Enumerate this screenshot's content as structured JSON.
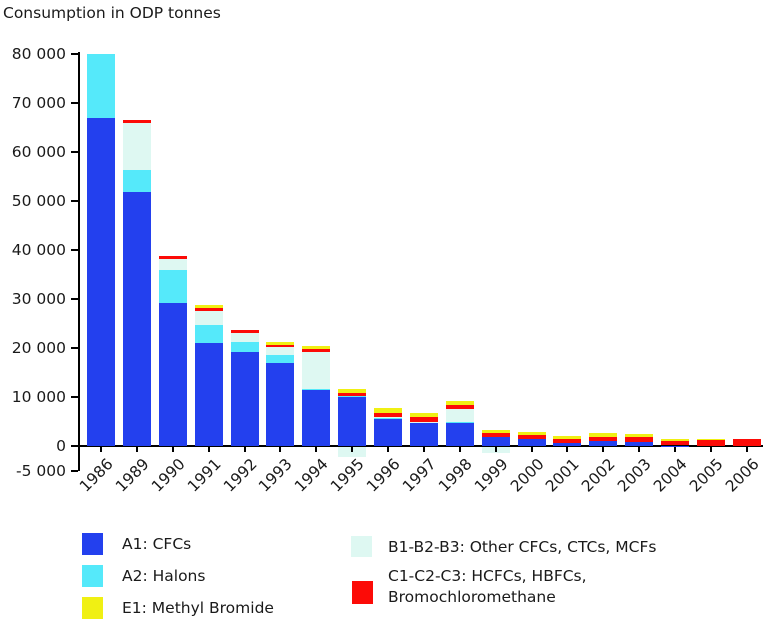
{
  "title": "Consumption in ODP tonnes",
  "colors": {
    "blue": "#2340EE",
    "cyan": "#55E9FA",
    "pale": "#DEF8F2",
    "yellow": "#F0F013",
    "red": "#FC0B07",
    "axis": "#000000"
  },
  "chart_data": {
    "type": "bar",
    "stacked": true,
    "title": "Consumption in ODP tonnes",
    "xlabel": "",
    "ylabel": "Consumption in ODP tonnes",
    "ylim": [
      -5000,
      80000
    ],
    "grid": false,
    "legend_position": "bottom",
    "categories": [
      "1986",
      "1989",
      "1990",
      "1991",
      "1992",
      "1993",
      "1994",
      "1995",
      "1996",
      "1997",
      "1998",
      "1999",
      "2000",
      "2001",
      "2002",
      "2003",
      "2004",
      "2005",
      "2006"
    ],
    "series": [
      {
        "id": "a1",
        "name": "A1: CFCs",
        "color_key": "blue",
        "values": [
          66900,
          51900,
          29100,
          21000,
          19200,
          17000,
          11400,
          9900,
          5450,
          4750,
          4850,
          1780,
          1370,
          670,
          1080,
          880,
          100,
          0,
          0
        ]
      },
      {
        "id": "a2",
        "name": "A2: Halons",
        "color_key": "cyan",
        "values": [
          13100,
          4400,
          6800,
          3700,
          2000,
          1600,
          200,
          300,
          250,
          100,
          150,
          0,
          0,
          0,
          0,
          0,
          0,
          0,
          0
        ]
      },
      {
        "id": "b",
        "name": "B1-B2-B3: Other CFCs, CTCs, MCFs",
        "color_key": "pale",
        "values": [
          0,
          9600,
          2300,
          2900,
          1850,
          1600,
          7500,
          -2000,
          300,
          100,
          2500,
          -1300,
          0,
          0,
          0,
          0,
          0,
          0,
          0
        ]
      },
      {
        "id": "c",
        "name": "C1-C2-C3: HCFCs, HBFCs, Bromochloromethane",
        "color_key": "red",
        "values": [
          0,
          550,
          550,
          550,
          550,
          470,
          670,
          670,
          820,
          890,
          820,
          820,
          880,
          680,
          820,
          890,
          880,
          1200,
          1500
        ]
      },
      {
        "id": "e1",
        "name": "E1: Methyl Bromide",
        "color_key": "yellow",
        "values": [
          0,
          0,
          0,
          670,
          0,
          470,
          670,
          670,
          900,
          820,
          820,
          690,
          680,
          680,
          690,
          670,
          490,
          150,
          0
        ]
      }
    ],
    "yticks": {
      "values": [
        80000,
        70000,
        60000,
        50000,
        40000,
        30000,
        20000,
        10000,
        0,
        -5000
      ],
      "labels": [
        "80 000",
        "70 000",
        "60 000",
        "50 000",
        "40 000",
        "30 000",
        "20 000",
        "10 000",
        "0",
        "-5 000"
      ]
    }
  },
  "legend": {
    "left_items": [
      {
        "id": "a1",
        "label": "A1: CFCs",
        "color_key": "blue"
      },
      {
        "id": "a2",
        "label": "A2: Halons",
        "color_key": "cyan"
      },
      {
        "id": "e1",
        "label": "E1: Methyl Bromide",
        "color_key": "yellow"
      }
    ],
    "right_items": [
      {
        "id": "b",
        "label": "B1-B2-B3: Other CFCs, CTCs, MCFs",
        "color_key": "pale"
      },
      {
        "id": "c",
        "label_line1": "C1-C2-C3: HCFCs, HBFCs,",
        "label_line2": "Bromochloromethane",
        "color_key": "red"
      }
    ]
  }
}
